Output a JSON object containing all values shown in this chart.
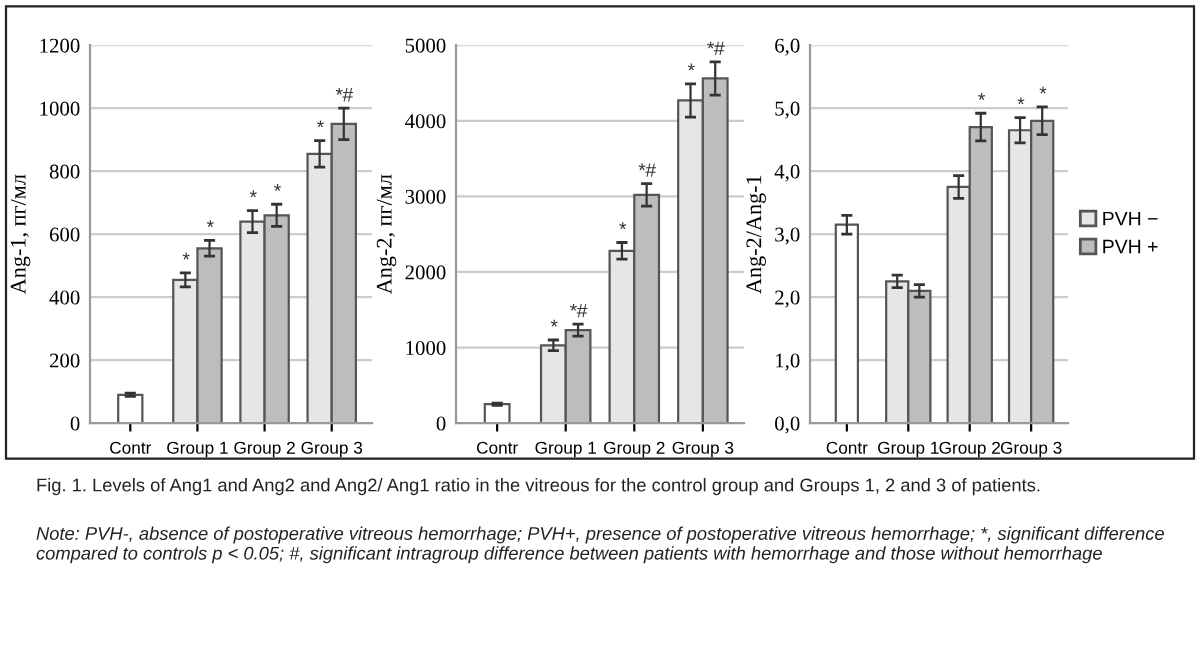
{
  "chart_data": [
    {
      "type": "bar",
      "ylabel": "Ang-1, пг/мл",
      "categories": [
        "Contr",
        "Group 1",
        "Group 2",
        "Group 3"
      ],
      "ylim": [
        0,
        1200
      ],
      "yticks": [
        0,
        200,
        400,
        600,
        800,
        1000,
        1200
      ],
      "grid": "y",
      "series": [
        {
          "color": "#ffffff",
          "values": [
            90,
            null,
            null,
            null
          ],
          "errors": [
            5,
            null,
            null,
            null
          ]
        },
        {
          "color": "#e6e6e6",
          "values": [
            null,
            455,
            640,
            855
          ],
          "errors": [
            null,
            22,
            35,
            42
          ],
          "value_labels": [
            null,
            "*",
            "*",
            "*"
          ]
        },
        {
          "color": "#bdbdbd",
          "values": [
            null,
            555,
            660,
            950
          ],
          "errors": [
            null,
            25,
            35,
            50
          ],
          "value_labels": [
            null,
            "*",
            "*",
            "*#"
          ]
        }
      ],
      "annotations": [
        "Fig. 1. Levels of Ang1 and Ang2 and Ang2/ Ang1 ratio in the vitreous for the control group and Groups 1, 2 and 3 of patients.",
        "Note: PVH-, absence of postoperative vitreous hemorrhage; PVH+, presence of postoperative vitreous hemorrhage; *, significant difference compared to controls p < 0.05; #, significant intragroup difference between patients with hemorrhage and those without hemorrhage"
      ]
    },
    {
      "type": "bar",
      "ylabel": "Ang-2, пг/мл",
      "categories": [
        "Contr",
        "Group 1",
        "Group 2",
        "Group 3"
      ],
      "ylim": [
        0,
        5000
      ],
      "yticks": [
        0,
        1000,
        2000,
        3000,
        4000,
        5000
      ],
      "grid": "y",
      "series": [
        {
          "color": "#ffffff",
          "values": [
            250,
            null,
            null,
            null
          ],
          "errors": [
            15,
            null,
            null,
            null
          ]
        },
        {
          "color": "#e6e6e6",
          "values": [
            null,
            1030,
            2280,
            4270
          ],
          "errors": [
            null,
            70,
            110,
            220
          ],
          "value_labels": [
            null,
            "*",
            "*",
            "*"
          ]
        },
        {
          "color": "#bdbdbd",
          "values": [
            null,
            1230,
            3020,
            4560
          ],
          "errors": [
            null,
            80,
            150,
            220
          ],
          "value_labels": [
            null,
            "*#",
            "*#",
            "*#"
          ]
        }
      ]
    },
    {
      "type": "bar",
      "ylabel": "Ang-2/Ang-1",
      "categories": [
        "Contr",
        "Group 1",
        "Group 2",
        "Group 3"
      ],
      "ylim": [
        0,
        6
      ],
      "yticks": [
        {
          "value": 0,
          "label": "0,0"
        },
        {
          "value": 1,
          "label": "1,0"
        },
        {
          "value": 2,
          "label": "2,0"
        },
        {
          "value": 3,
          "label": "3,0"
        },
        {
          "value": 4,
          "label": "4,0"
        },
        {
          "value": 5,
          "label": "5,0"
        },
        {
          "value": 6,
          "label": "6,0"
        }
      ],
      "grid": "y",
      "legend": "right",
      "series": [
        {
          "color": "#ffffff",
          "values": [
            3.15,
            null,
            null,
            null
          ],
          "errors": [
            0.15,
            null,
            null,
            null
          ]
        },
        {
          "name": "PVH −",
          "color": "#e6e6e6",
          "values": [
            null,
            2.25,
            3.75,
            4.65
          ],
          "errors": [
            null,
            0.1,
            0.18,
            0.2
          ],
          "value_labels": [
            null,
            null,
            null,
            "*"
          ]
        },
        {
          "name": "PVH +",
          "color": "#bdbdbd",
          "values": [
            null,
            2.1,
            4.7,
            4.8
          ],
          "errors": [
            null,
            0.1,
            0.22,
            0.22
          ],
          "value_labels": [
            null,
            null,
            "*",
            "*"
          ]
        }
      ]
    }
  ]
}
